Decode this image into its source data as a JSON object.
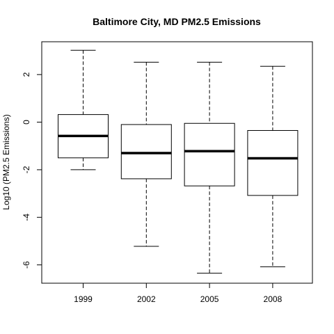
{
  "chart_data": {
    "type": "boxplot",
    "title": "Baltimore City, MD PM2.5 Emissions",
    "xlabel": "",
    "ylabel": "Log10 (PM2.5 Emissions)",
    "ylim": [
      -6.77,
      3.38
    ],
    "yticks": [
      -6,
      -4,
      -2,
      0,
      2
    ],
    "categories": [
      "1999",
      "2002",
      "2005",
      "2008"
    ],
    "boxes": [
      {
        "category": "1999",
        "whisker_low": -2.0,
        "q1": -1.5,
        "median": -0.58,
        "q3": 0.32,
        "whisker_high": 3.02
      },
      {
        "category": "2002",
        "whisker_low": -5.22,
        "q1": -2.38,
        "median": -1.3,
        "q3": -0.1,
        "whisker_high": 2.52
      },
      {
        "category": "2005",
        "whisker_low": -6.35,
        "q1": -2.68,
        "median": -1.22,
        "q3": -0.05,
        "whisker_high": 2.52
      },
      {
        "category": "2008",
        "whisker_low": -6.08,
        "q1": -3.08,
        "median": -1.52,
        "q3": -0.35,
        "whisker_high": 2.35
      }
    ],
    "grid": false,
    "legend": "none"
  }
}
